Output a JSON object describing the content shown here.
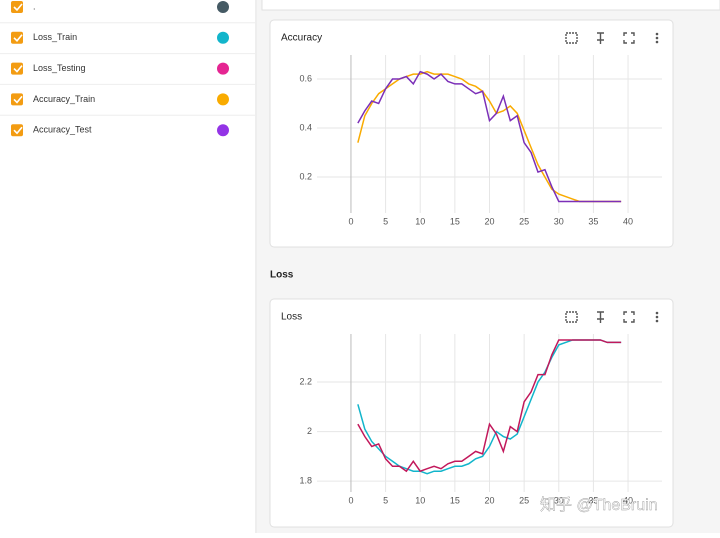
{
  "sidebar": {
    "runs": [
      {
        "label": ".",
        "color": "#455a64"
      },
      {
        "label": "Loss_Train",
        "color": "#12b5cb"
      },
      {
        "label": "Loss_Testing",
        "color": "#e52592"
      },
      {
        "label": "Accuracy_Train",
        "color": "#f9ab00"
      },
      {
        "label": "Accuracy_Test",
        "color": "#9334e6"
      }
    ]
  },
  "section_title": "Loss",
  "watermark": "知乎 @TheBruin",
  "charts": [
    {
      "type": "line",
      "title": "Accuracy",
      "x": [
        1,
        2,
        3,
        4,
        5,
        6,
        7,
        8,
        9,
        10,
        11,
        12,
        13,
        14,
        15,
        16,
        17,
        18,
        19,
        20,
        21,
        22,
        23,
        24,
        25,
        26,
        27,
        28,
        29,
        30,
        31,
        32,
        33,
        34,
        35,
        36,
        37,
        38,
        39
      ],
      "series": [
        {
          "color": "#f9ab00",
          "values": [
            0.34,
            0.45,
            0.5,
            0.54,
            0.56,
            0.58,
            0.6,
            0.61,
            0.62,
            0.62,
            0.63,
            0.62,
            0.62,
            0.62,
            0.61,
            0.6,
            0.58,
            0.57,
            0.55,
            0.51,
            0.46,
            0.47,
            0.49,
            0.46,
            0.39,
            0.32,
            0.25,
            0.2,
            0.15,
            0.13,
            0.12,
            0.11,
            0.1,
            0.1,
            0.1,
            0.1,
            0.1,
            0.1,
            0.1
          ]
        },
        {
          "color": "#7b2fb8",
          "values": [
            0.42,
            0.47,
            0.51,
            0.5,
            0.56,
            0.6,
            0.6,
            0.61,
            0.58,
            0.63,
            0.62,
            0.6,
            0.62,
            0.59,
            0.58,
            0.58,
            0.56,
            0.54,
            0.55,
            0.43,
            0.46,
            0.53,
            0.43,
            0.45,
            0.34,
            0.3,
            0.22,
            0.23,
            0.16,
            0.1,
            0.1,
            0.1,
            0.1,
            0.1,
            0.1,
            0.1,
            0.1,
            0.1,
            0.1
          ]
        }
      ],
      "xlim": [
        -4.9,
        44.9
      ],
      "xticks": [
        0,
        5,
        10,
        15,
        20,
        25,
        30,
        35,
        40
      ],
      "ylim": [
        0.053,
        0.698
      ],
      "yticks": [
        0.2,
        0.4,
        0.6
      ],
      "grid": true
    },
    {
      "type": "line",
      "title": "Loss",
      "x": [
        1,
        2,
        3,
        4,
        5,
        6,
        7,
        8,
        9,
        10,
        11,
        12,
        13,
        14,
        15,
        16,
        17,
        18,
        19,
        20,
        21,
        22,
        23,
        24,
        25,
        26,
        27,
        28,
        29,
        30,
        31,
        32,
        33,
        34,
        35,
        36,
        37,
        38,
        39
      ],
      "series": [
        {
          "color": "#12b5cb",
          "values": [
            2.11,
            2.01,
            1.96,
            1.93,
            1.9,
            1.88,
            1.86,
            1.85,
            1.84,
            1.84,
            1.83,
            1.84,
            1.84,
            1.85,
            1.86,
            1.86,
            1.87,
            1.89,
            1.9,
            1.94,
            2.0,
            1.98,
            1.97,
            1.99,
            2.06,
            2.13,
            2.2,
            2.24,
            2.3,
            2.35,
            2.36,
            2.37,
            2.37,
            2.37,
            2.37,
            2.37,
            2.36,
            2.36,
            2.36
          ]
        },
        {
          "color": "#c2185b",
          "values": [
            2.03,
            1.98,
            1.94,
            1.95,
            1.89,
            1.86,
            1.86,
            1.84,
            1.88,
            1.84,
            1.85,
            1.86,
            1.85,
            1.87,
            1.88,
            1.88,
            1.9,
            1.92,
            1.91,
            2.03,
            1.99,
            1.92,
            2.02,
            2.0,
            2.12,
            2.16,
            2.23,
            2.23,
            2.31,
            2.37,
            2.37,
            2.37,
            2.37,
            2.37,
            2.37,
            2.37,
            2.36,
            2.36,
            2.36
          ]
        }
      ],
      "xlim": [
        -4.9,
        44.9
      ],
      "xticks": [
        0,
        5,
        10,
        15,
        20,
        25,
        30,
        35,
        40
      ],
      "ylim": [
        1.756,
        2.394
      ],
      "yticks": [
        1.8,
        2,
        2.2
      ],
      "grid": true
    }
  ]
}
